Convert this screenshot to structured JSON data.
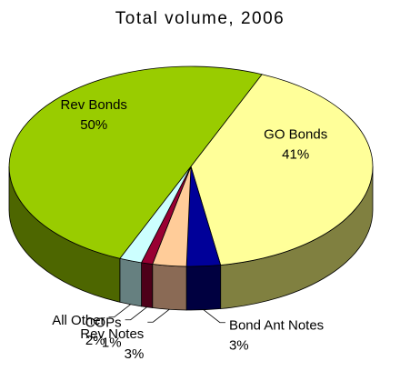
{
  "chart_data": {
    "type": "pie",
    "title": "Total volume, 2006",
    "three_d": true,
    "unit": "%",
    "slices": [
      {
        "label": "GO Bonds",
        "value": 41,
        "value_label": "41%",
        "color": "#FFFF99",
        "side_color": "#808040"
      },
      {
        "label": "Bond Ant Notes",
        "value": 3,
        "value_label": "3%",
        "color": "#000099",
        "side_color": "#000040"
      },
      {
        "label": "Rev Notes",
        "value": 3,
        "value_label": "3%",
        "color": "#FFCC99",
        "side_color": "#8A6A55"
      },
      {
        "label": "COPs",
        "value": 1,
        "value_label": "1%",
        "color": "#990033",
        "side_color": "#4D0019"
      },
      {
        "label": "All Other",
        "value": 2,
        "value_label": "2%",
        "color": "#CCFFFF",
        "side_color": "#668080"
      },
      {
        "label": "Rev Bonds",
        "value": 50,
        "value_label": "50%",
        "color": "#99CC00",
        "side_color": "#4D6600"
      }
    ]
  }
}
